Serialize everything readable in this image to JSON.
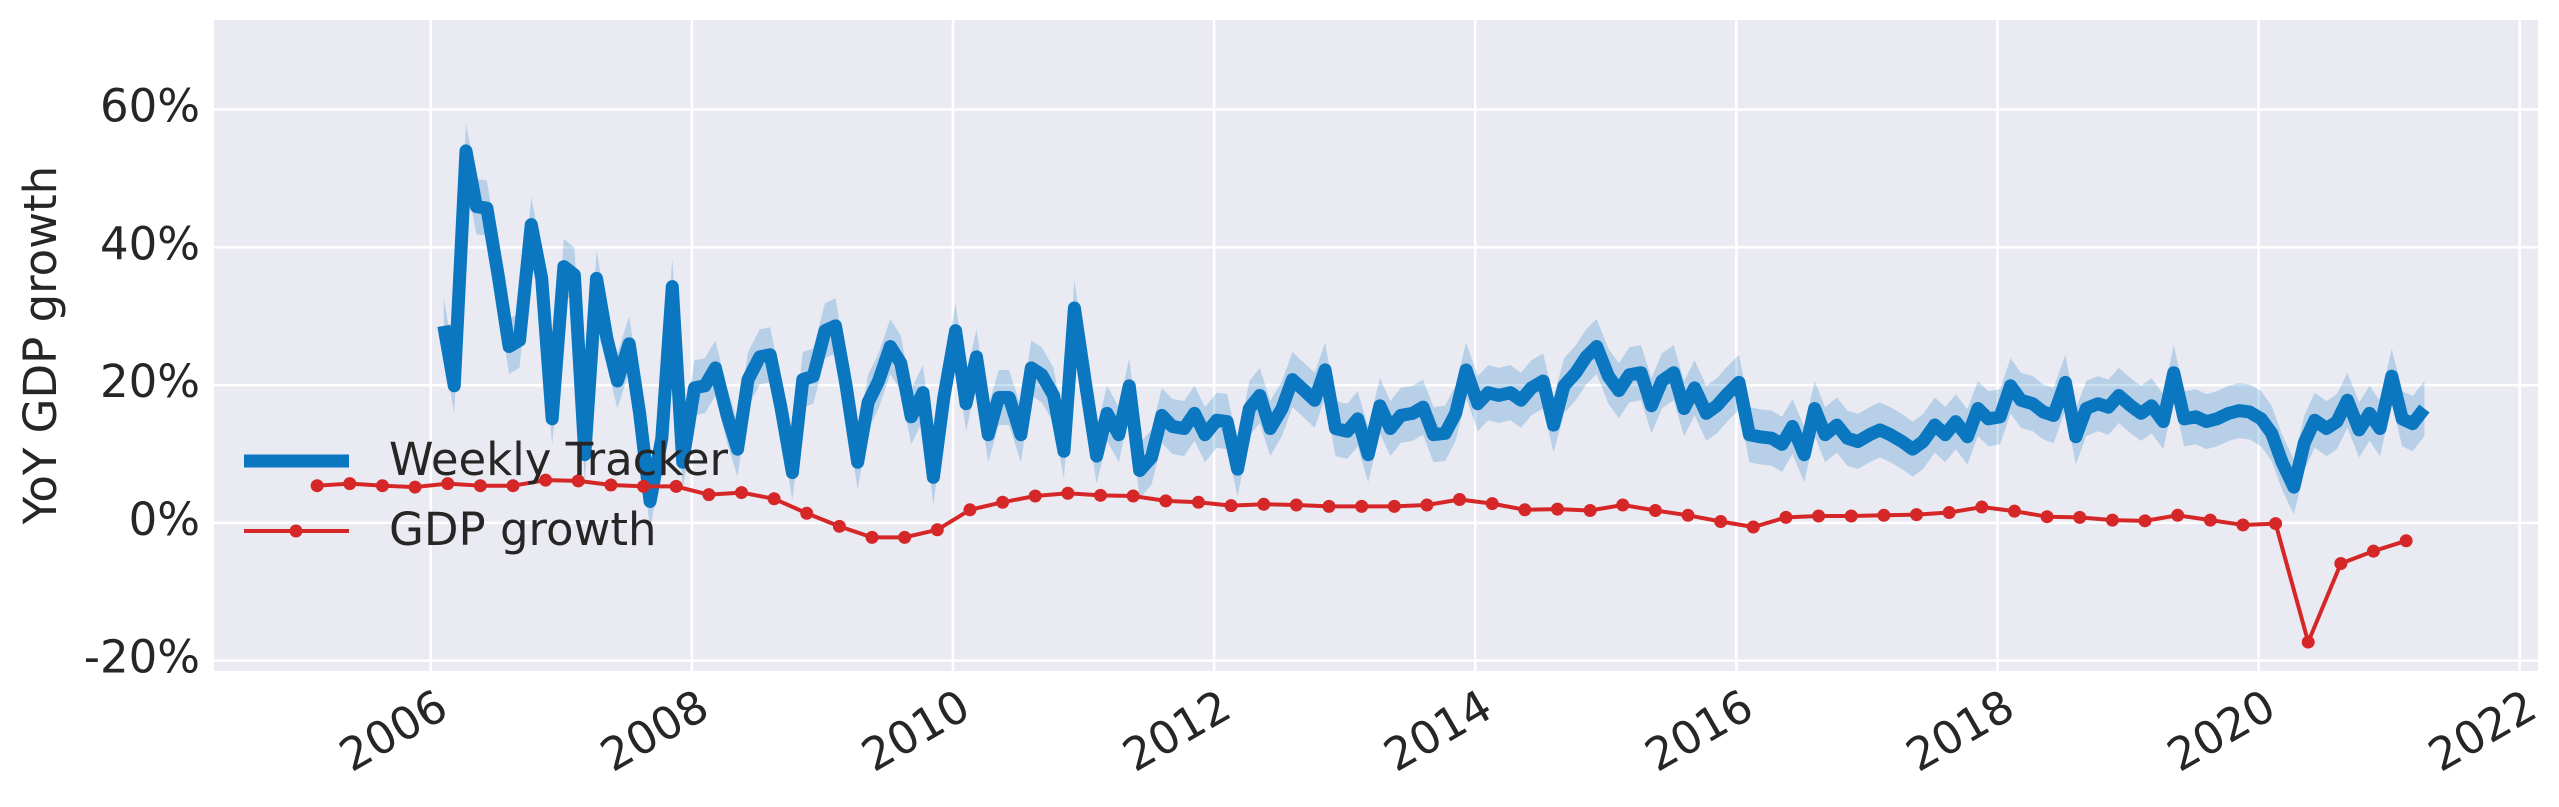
{
  "chart_data": {
    "type": "line",
    "ylabel": "YoY GDP growth",
    "xlim": [
      2004.34,
      2022.14
    ],
    "ylim": [
      -21.5,
      73
    ],
    "xticks": [
      2006,
      2008,
      2010,
      2012,
      2014,
      2016,
      2018,
      2020,
      2022
    ],
    "yticks": [
      {
        "value": -20,
        "label": "-20%"
      },
      {
        "value": 0,
        "label": "0%"
      },
      {
        "value": 20,
        "label": "20%"
      },
      {
        "value": 40,
        "label": "40%"
      },
      {
        "value": 60,
        "label": "60%"
      }
    ],
    "grid": true,
    "legend": "lower left",
    "series": [
      {
        "name": "Weekly Tracker",
        "color": "#0b77c0",
        "ci": 4,
        "x": [
          2006.1,
          2006.18,
          2006.27,
          2006.35,
          2006.43,
          2006.52,
          2006.6,
          2006.68,
          2006.77,
          2006.85,
          2006.93,
          2007.02,
          2007.1,
          2007.18,
          2007.27,
          2007.35,
          2007.43,
          2007.52,
          2007.6,
          2007.68,
          2007.77,
          2007.85,
          2007.93,
          2008.02,
          2008.1,
          2008.18,
          2008.27,
          2008.35,
          2008.43,
          2008.52,
          2008.6,
          2008.68,
          2008.77,
          2008.85,
          2008.93,
          2009.02,
          2009.1,
          2009.18,
          2009.27,
          2009.35,
          2009.43,
          2009.52,
          2009.6,
          2009.68,
          2009.77,
          2009.85,
          2009.93,
          2010.02,
          2010.1,
          2010.18,
          2010.27,
          2010.35,
          2010.43,
          2010.52,
          2010.6,
          2010.68,
          2010.77,
          2010.85,
          2010.93,
          2011.02,
          2011.1,
          2011.18,
          2011.27,
          2011.35,
          2011.43,
          2011.52,
          2011.6,
          2011.68,
          2011.77,
          2011.85,
          2011.93,
          2012.02,
          2012.1,
          2012.18,
          2012.27,
          2012.35,
          2012.43,
          2012.52,
          2012.6,
          2012.68,
          2012.77,
          2012.85,
          2012.93,
          2013.02,
          2013.1,
          2013.18,
          2013.27,
          2013.35,
          2013.43,
          2013.52,
          2013.6,
          2013.68,
          2013.77,
          2013.85,
          2013.93,
          2014.02,
          2014.1,
          2014.18,
          2014.27,
          2014.35,
          2014.43,
          2014.52,
          2014.6,
          2014.68,
          2014.77,
          2014.85,
          2014.93,
          2015.02,
          2015.1,
          2015.18,
          2015.27,
          2015.35,
          2015.43,
          2015.52,
          2015.6,
          2015.68,
          2015.77,
          2015.85,
          2015.93,
          2016.02,
          2016.1,
          2016.18,
          2016.27,
          2016.35,
          2016.43,
          2016.52,
          2016.6,
          2016.68,
          2016.77,
          2016.85,
          2016.93,
          2017.02,
          2017.1,
          2017.18,
          2017.27,
          2017.35,
          2017.43,
          2017.52,
          2017.6,
          2017.68,
          2017.77,
          2017.85,
          2017.93,
          2018.02,
          2018.1,
          2018.18,
          2018.27,
          2018.35,
          2018.43,
          2018.52,
          2018.6,
          2018.68,
          2018.77,
          2018.85,
          2018.93,
          2019.02,
          2019.1,
          2019.18,
          2019.27,
          2019.35,
          2019.43,
          2019.52,
          2019.6,
          2019.68,
          2019.77,
          2019.85,
          2019.93,
          2020.02,
          2020.1,
          2020.18,
          2020.27,
          2020.35,
          2020.43,
          2020.52,
          2020.6,
          2020.68,
          2020.77,
          2020.85,
          2020.93,
          2021.02,
          2021.1,
          2021.18,
          2021.27
        ],
        "values": [
          28.6,
          19.9,
          54,
          45.9,
          45.7,
          35.5,
          25.6,
          26.5,
          43.3,
          35.5,
          15.1,
          37.2,
          36,
          9.9,
          35.5,
          26.7,
          20.6,
          26,
          15.9,
          3.1,
          12.3,
          34.3,
          8.8,
          19.6,
          19.9,
          22.5,
          15.6,
          10.7,
          20.8,
          24.1,
          24.4,
          17,
          7.3,
          20.8,
          21.3,
          27.9,
          28.6,
          20.1,
          8.8,
          17.5,
          20.6,
          25.6,
          23.2,
          15.4,
          18.9,
          6.6,
          18.2,
          27.9,
          17.3,
          24.1,
          12.8,
          18.2,
          18.2,
          12.8,
          22.5,
          21.5,
          18.5,
          10.4,
          31.2,
          19.6,
          9.7,
          15.9,
          12.8,
          19.9,
          7.6,
          9.5,
          15.6,
          14,
          13.7,
          15.9,
          12.8,
          14.9,
          14.7,
          7.8,
          16.6,
          18.5,
          13.7,
          16.6,
          20.8,
          19.4,
          17.8,
          22.2,
          13.7,
          13.3,
          15.1,
          9.9,
          17,
          13.7,
          15.6,
          15.9,
          16.8,
          12.8,
          13,
          15.9,
          22.2,
          17.3,
          18.9,
          18.5,
          18.9,
          17.8,
          19.6,
          20.6,
          14.2,
          19.9,
          21.8,
          24.1,
          25.6,
          21.3,
          19.2,
          21.5,
          21.8,
          17,
          20.6,
          21.8,
          16.6,
          19.6,
          15.9,
          17,
          18.7,
          20.4,
          12.8,
          12.5,
          12.3,
          11.4,
          14,
          9.9,
          16.6,
          12.8,
          14.2,
          12.3,
          11.8,
          12.8,
          13.5,
          12.8,
          11.8,
          10.7,
          11.8,
          14.2,
          12.8,
          14.7,
          12.5,
          16.6,
          15.1,
          15.4,
          19.9,
          17.8,
          17.3,
          16.1,
          15.6,
          20.4,
          12.5,
          16.6,
          17.3,
          16.8,
          18.5,
          17,
          15.9,
          17,
          14.7,
          21.8,
          15.1,
          15.4,
          14.7,
          15.1,
          15.9,
          16.3,
          16.1,
          15.1,
          13,
          8.8,
          5.2,
          11.6,
          14.9,
          13.7,
          14.7,
          17.8,
          13.5,
          15.9,
          13.7,
          21.3,
          15.1,
          14.4,
          16.6
        ]
      },
      {
        "name": "GDP growth",
        "color": "#d62728",
        "marker": "o",
        "x": [
          2005.13,
          2005.38,
          2005.63,
          2005.88,
          2006.13,
          2006.38,
          2006.63,
          2006.88,
          2007.13,
          2007.38,
          2007.63,
          2007.88,
          2008.13,
          2008.38,
          2008.63,
          2008.88,
          2009.13,
          2009.38,
          2009.63,
          2009.88,
          2010.13,
          2010.38,
          2010.63,
          2010.88,
          2011.13,
          2011.38,
          2011.63,
          2011.88,
          2012.13,
          2012.38,
          2012.63,
          2012.88,
          2013.13,
          2013.38,
          2013.63,
          2013.88,
          2014.13,
          2014.38,
          2014.63,
          2014.88,
          2015.13,
          2015.38,
          2015.63,
          2015.88,
          2016.13,
          2016.38,
          2016.63,
          2016.88,
          2017.13,
          2017.38,
          2017.63,
          2017.88,
          2018.13,
          2018.38,
          2018.63,
          2018.88,
          2019.13,
          2019.38,
          2019.63,
          2019.88,
          2020.13,
          2020.38,
          2020.63,
          2020.88,
          2021.13
        ],
        "values": [
          5.4,
          5.7,
          5.4,
          5.2,
          5.7,
          5.4,
          5.4,
          6.2,
          6.1,
          5.5,
          5.3,
          5.3,
          4.1,
          4.4,
          3.5,
          1.4,
          -0.5,
          -2.1,
          -2.1,
          -1,
          1.9,
          3,
          3.9,
          4.3,
          4,
          3.9,
          3.2,
          3,
          2.5,
          2.7,
          2.6,
          2.4,
          2.4,
          2.4,
          2.6,
          3.4,
          2.8,
          1.9,
          2,
          1.8,
          2.6,
          1.8,
          1.1,
          0.2,
          -0.6,
          0.8,
          1,
          1,
          1.1,
          1.2,
          1.5,
          2.3,
          1.7,
          0.9,
          0.8,
          0.4,
          0.3,
          1.1,
          0.4,
          -0.3,
          -0.1,
          -17.3,
          -5.9,
          -4.1,
          -2.6
        ]
      }
    ]
  }
}
